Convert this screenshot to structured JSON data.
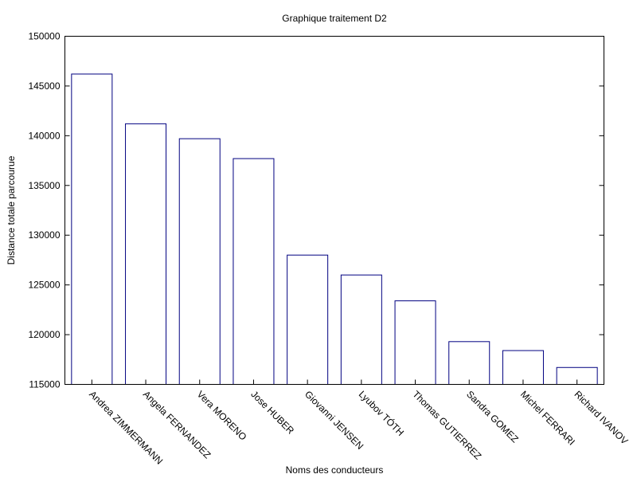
{
  "chart_data": {
    "type": "bar",
    "title": "Graphique traitement D2",
    "xlabel": "Noms des conducteurs",
    "ylabel": "Distance totale parcourue",
    "ylim": [
      115000,
      150000
    ],
    "yticks": [
      "115000",
      "120000",
      "125000",
      "130000",
      "135000",
      "140000",
      "145000",
      "150000"
    ],
    "categories": [
      "Andrea ZIMMERMANN",
      "Angela FERNANDEZ",
      "Vera MORENO",
      "Jose HUBER",
      "Giovanni JENSEN",
      "Lyubov TÓTH",
      "Thomas GUTIERREZ",
      "Sandra GOMEZ",
      "Michel FERRARI",
      "Richard IVANOV"
    ],
    "values": [
      146200,
      141200,
      139700,
      137700,
      128000,
      126000,
      123400,
      119300,
      118400,
      116700
    ],
    "bar_color": "#000080",
    "grid": false,
    "legend": "none"
  }
}
